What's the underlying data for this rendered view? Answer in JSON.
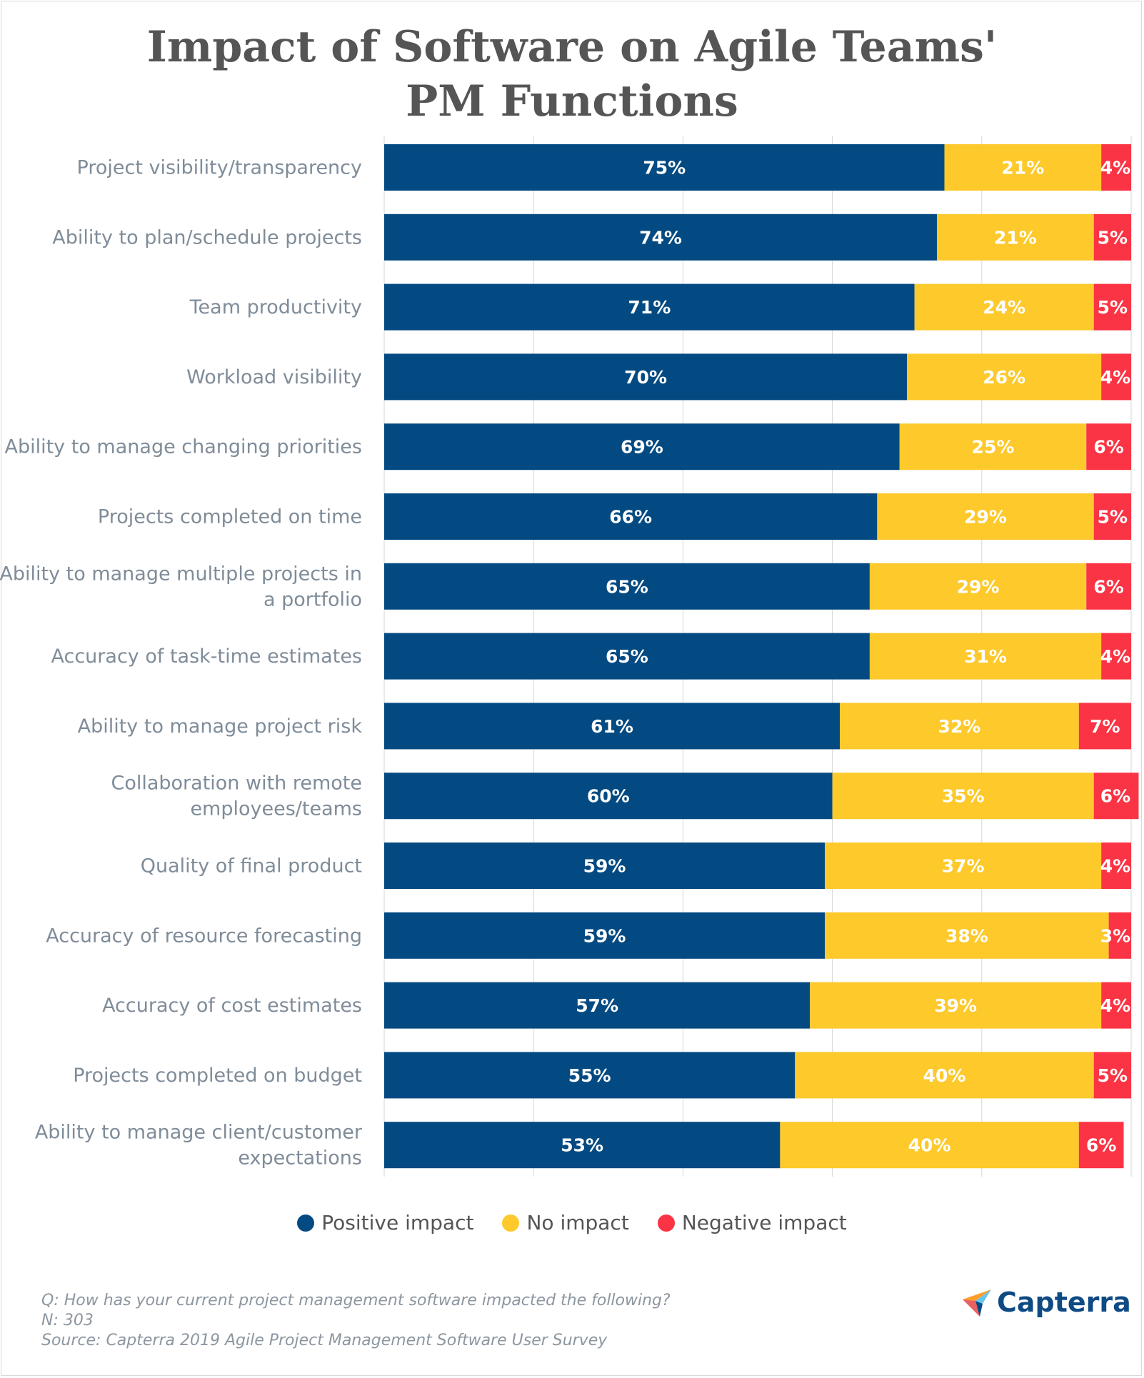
{
  "title_lines": [
    "Impact of Software on Agile Teams'",
    "PM Functions"
  ],
  "colors": {
    "positive": "#044a82",
    "none": "#fdc92b",
    "negative": "#fa3444",
    "label": "#7f8c99",
    "grid": "#d6d6d6"
  },
  "chart_data": {
    "type": "bar",
    "orientation": "horizontal-stacked",
    "title": "Impact of Software on Agile Teams' PM Functions",
    "xlim": [
      0,
      100
    ],
    "grid": true,
    "legend_position": "bottom-center",
    "categories": [
      [
        "Project visibility/transparency"
      ],
      [
        "Ability to plan/schedule projects"
      ],
      [
        "Team productivity"
      ],
      [
        "Workload visibility"
      ],
      [
        "Ability to manage changing priorities"
      ],
      [
        "Projects completed on time"
      ],
      [
        "Ability to manage multiple projects in",
        "a portfolio"
      ],
      [
        "Accuracy of task-time estimates"
      ],
      [
        "Ability to manage project risk"
      ],
      [
        "Collaboration with remote",
        "employees/teams"
      ],
      [
        "Quality of final product"
      ],
      [
        "Accuracy of resource forecasting"
      ],
      [
        "Accuracy of cost estimates"
      ],
      [
        "Projects completed on budget"
      ],
      [
        "Ability to manage client/customer",
        "expectations"
      ]
    ],
    "series": [
      {
        "name": "Positive impact",
        "color": "#044a82",
        "values": [
          75,
          74,
          71,
          70,
          69,
          66,
          65,
          65,
          61,
          60,
          59,
          59,
          57,
          55,
          53
        ]
      },
      {
        "name": "No impact",
        "color": "#fdc92b",
        "values": [
          21,
          21,
          24,
          26,
          25,
          29,
          29,
          31,
          32,
          35,
          37,
          38,
          39,
          40,
          40
        ]
      },
      {
        "name": "Negative impact",
        "color": "#fa3444",
        "values": [
          4,
          5,
          5,
          4,
          6,
          5,
          6,
          4,
          7,
          6,
          4,
          3,
          4,
          5,
          6
        ]
      }
    ]
  },
  "legend": [
    "Positive impact",
    "No impact",
    "Negative impact"
  ],
  "footnotes": {
    "question": "Q: How has your current project management software impacted the following?",
    "n": "N: 303",
    "source": "Source: Capterra 2019 Agile Project Management Software User Survey"
  },
  "logo": {
    "text": "Capterra"
  }
}
